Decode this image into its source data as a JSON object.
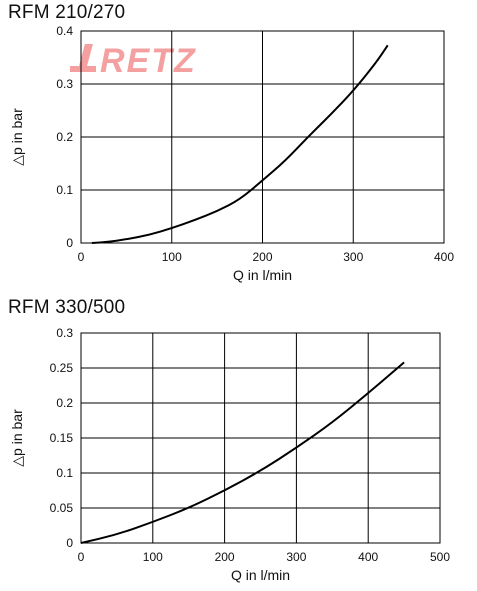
{
  "watermark": {
    "text": "RETZ",
    "color": "#f26f6f"
  },
  "chart_data": [
    {
      "type": "line",
      "title": "RFM 210/270",
      "xlabel": "Q in l/min",
      "ylabel": "△p in bar",
      "xlim": [
        0,
        400
      ],
      "ylim": [
        0,
        0.4
      ],
      "xticks": [
        0,
        100,
        200,
        300,
        400
      ],
      "yticks": [
        0,
        0.1,
        0.2,
        0.3,
        0.4
      ],
      "xtick_labels": [
        "0",
        "100",
        "200",
        "300",
        "400"
      ],
      "ytick_labels": [
        "0",
        "0.1",
        "0.2",
        "0.3",
        "0.4"
      ],
      "grid": true,
      "series": [
        {
          "x": [
            12,
            30,
            50,
            75,
            100,
            125,
            150,
            175,
            200,
            225,
            250,
            275,
            300,
            325,
            338
          ],
          "y": [
            0.0,
            0.002,
            0.007,
            0.015,
            0.028,
            0.043,
            0.06,
            0.082,
            0.118,
            0.155,
            0.2,
            0.242,
            0.287,
            0.34,
            0.373
          ]
        }
      ]
    },
    {
      "type": "line",
      "title": "RFM 330/500",
      "xlabel": "Q in l/min",
      "ylabel": "△p in bar",
      "xlim": [
        0,
        500
      ],
      "ylim": [
        0,
        0.3
      ],
      "xticks": [
        0,
        100,
        200,
        300,
        400,
        500
      ],
      "yticks": [
        0,
        0.05,
        0.1,
        0.15,
        0.2,
        0.25,
        0.3
      ],
      "xtick_labels": [
        "0",
        "100",
        "200",
        "300",
        "400",
        "500"
      ],
      "ytick_labels": [
        "0",
        "0.05",
        "0.1",
        "0.15",
        "0.2",
        "0.25",
        "0.3"
      ],
      "grid": true,
      "series": [
        {
          "x": [
            0,
            50,
            100,
            150,
            200,
            250,
            300,
            350,
            400,
            450
          ],
          "y": [
            0.0,
            0.012,
            0.03,
            0.05,
            0.075,
            0.103,
            0.136,
            0.172,
            0.214,
            0.258
          ]
        }
      ]
    }
  ]
}
